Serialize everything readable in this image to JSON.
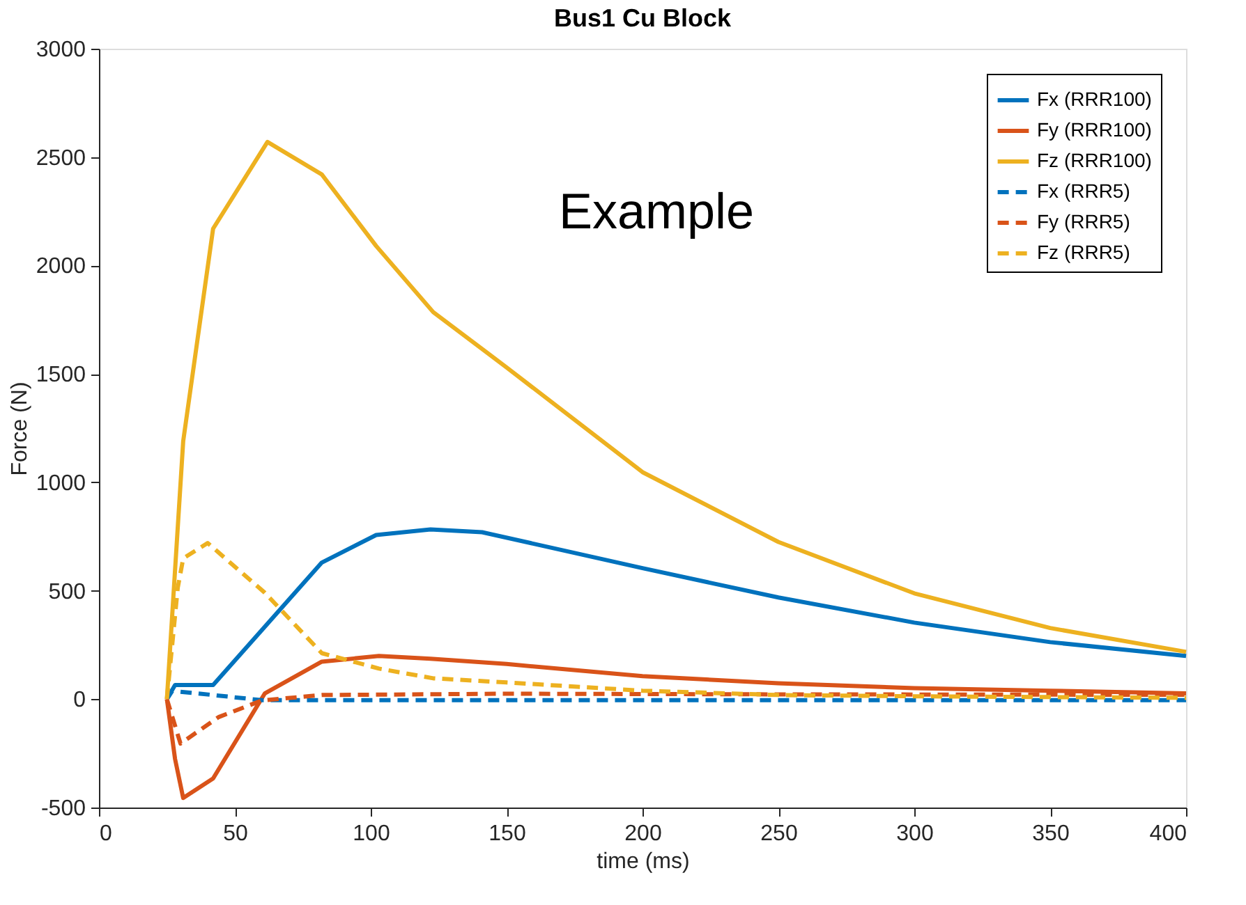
{
  "chart_data": {
    "type": "line",
    "title": "Bus1 Cu Block",
    "xlabel": "time (ms)",
    "ylabel": "Force (N)",
    "xlim": [
      0,
      400
    ],
    "xticks": [
      0,
      50,
      100,
      150,
      200,
      250,
      300,
      350,
      400
    ],
    "ylim": [
      -500,
      3000
    ],
    "yticks": [
      -500,
      0,
      500,
      1000,
      1500,
      2000,
      2500,
      3000
    ],
    "grid": false,
    "legend": "top right",
    "marker": "none",
    "annotations": [
      "Example"
    ],
    "series": [
      {
        "name": "Fx (RRR100)",
        "color": "#0072bd",
        "line_style": "solid",
        "x": [
          25,
          28,
          42,
          82,
          102,
          122,
          141,
          200,
          250,
          300,
          350,
          400
        ],
        "values": [
          0,
          65,
          65,
          630,
          757,
          783,
          770,
          604,
          469,
          353,
          263,
          199
        ]
      },
      {
        "name": "Fy (RRR100)",
        "color": "#d95319",
        "line_style": "solid",
        "x": [
          25,
          28,
          31,
          42,
          61,
          82,
          103,
          122,
          150,
          200,
          250,
          300,
          350,
          400
        ],
        "values": [
          0,
          -276,
          -456,
          -366,
          26,
          173,
          199,
          186,
          162,
          106,
          73,
          51,
          39,
          27
        ]
      },
      {
        "name": "Fz (RRR100)",
        "color": "#edb120",
        "line_style": "solid",
        "x": [
          25,
          31,
          42,
          62,
          82,
          102,
          123,
          150,
          200,
          250,
          300,
          350,
          400
        ],
        "values": [
          0,
          1190,
          2170,
          2570,
          2420,
          2090,
          1785,
          1530,
          1047,
          725,
          488,
          328,
          218
        ]
      },
      {
        "name": "Fx (RRR5)",
        "color": "#0072bd",
        "line_style": "dashed",
        "x": [
          25,
          27,
          42,
          60,
          100,
          200,
          300,
          400
        ],
        "values": [
          0,
          38,
          19,
          -5,
          -5,
          -5,
          -5,
          -5
        ]
      },
      {
        "name": "Fy (RRR5)",
        "color": "#d95319",
        "line_style": "dashed",
        "x": [
          25,
          30,
          44,
          60,
          82,
          150,
          250,
          400
        ],
        "values": [
          0,
          -205,
          -83,
          -6,
          19,
          25,
          22,
          20
        ]
      },
      {
        "name": "Fz (RRR5)",
        "color": "#edb120",
        "line_style": "dashed",
        "x": [
          25,
          29,
          31,
          40,
          61,
          82,
          103,
          123,
          150,
          200,
          250,
          300,
          400
        ],
        "values": [
          0,
          514,
          649,
          720,
          491,
          212,
          141,
          96,
          77,
          39,
          19,
          13,
          6
        ]
      }
    ]
  }
}
